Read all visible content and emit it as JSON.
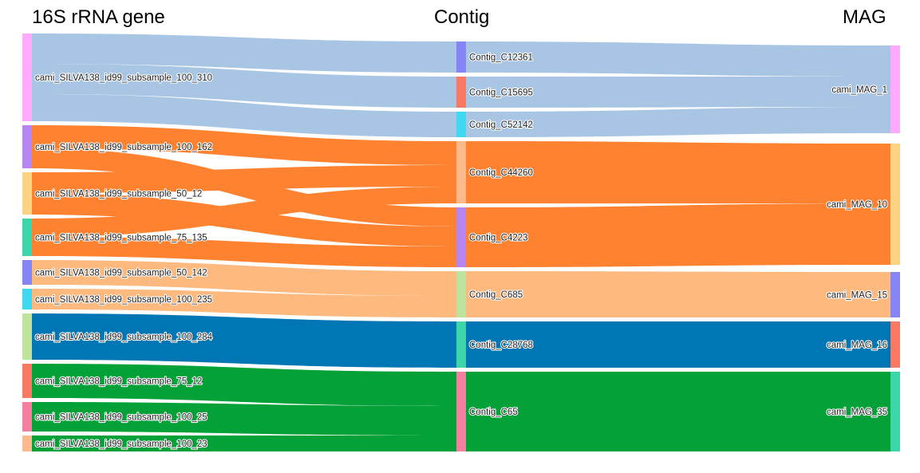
{
  "columns": {
    "left": "16S rRNA gene",
    "middle": "Contig",
    "right": "MAG"
  },
  "nodes": {
    "s310": {
      "label": "cami_SILVA138_id99_subsample_100_310",
      "color": "#ffaaff"
    },
    "s162": {
      "label": "cami_SILVA138_id99_subsample_100_162",
      "color": "#b685f0"
    },
    "s50_12": {
      "label": "cami_SILVA138_id99_subsample_50_12",
      "color": "#fcd283"
    },
    "s75_135": {
      "label": "cami_SILVA138_id99_subsample_75_135",
      "color": "#3cd6a8"
    },
    "s50_142": {
      "label": "cami_SILVA138_id99_subsample_50_142",
      "color": "#8585f5"
    },
    "s235": {
      "label": "cami_SILVA138_id99_subsample_100_235",
      "color": "#3fd8f0"
    },
    "s284": {
      "label": "cami_SILVA138_id99_subsample_100_284",
      "color": "#bde39c"
    },
    "s75_12": {
      "label": "cami_SILVA138_id99_subsample_75_12",
      "color": "#f87964"
    },
    "s25": {
      "label": "cami_SILVA138_id99_subsample_100_25",
      "color": "#f57fa1"
    },
    "s23": {
      "label": "cami_SILVA138_id99_subsample_100_23",
      "color": "#fcb98c"
    },
    "c12361": {
      "label": "Contig_C12361",
      "color": "#8585f5"
    },
    "c15695": {
      "label": "Contig_C15695",
      "color": "#f87964"
    },
    "c52142": {
      "label": "Contig_C52142",
      "color": "#3fd8f0"
    },
    "c44260": {
      "label": "Contig_C44260",
      "color": "#fcb98c"
    },
    "c4223": {
      "label": "Contig_C4223",
      "color": "#b685f0"
    },
    "c685": {
      "label": "Contig_C685",
      "color": "#bde39c"
    },
    "c28768": {
      "label": "Contig_C28768",
      "color": "#3cd6a8"
    },
    "c65": {
      "label": "Contig_C65",
      "color": "#f57fa1"
    },
    "mag1": {
      "label": "cami_MAG_1",
      "color": "#ffaaff"
    },
    "mag10": {
      "label": "cami_MAG_10",
      "color": "#fcd283"
    },
    "mag15": {
      "label": "cami_MAG_15",
      "color": "#8585f5"
    },
    "mag16": {
      "label": "cami_MAG_16",
      "color": "#f87964"
    },
    "mag35": {
      "label": "cami_MAG_35",
      "color": "#3cd6a8"
    }
  },
  "links": [
    {
      "source": "s310",
      "target": "c12361",
      "color": "#a8c6e4"
    },
    {
      "source": "s310",
      "target": "c15695",
      "color": "#a8c6e4"
    },
    {
      "source": "s310",
      "target": "c52142",
      "color": "#a8c6e4"
    },
    {
      "source": "s162",
      "target": "c44260",
      "color": "#ff8230"
    },
    {
      "source": "s162",
      "target": "c4223",
      "color": "#ff8230"
    },
    {
      "source": "s50_12",
      "target": "c44260",
      "color": "#ff8230"
    },
    {
      "source": "s50_12",
      "target": "c4223",
      "color": "#ff8230"
    },
    {
      "source": "s75_135",
      "target": "c44260",
      "color": "#ff8230"
    },
    {
      "source": "s75_135",
      "target": "c4223",
      "color": "#ff8230"
    },
    {
      "source": "s50_142",
      "target": "c685",
      "color": "#feb97f"
    },
    {
      "source": "s235",
      "target": "c685",
      "color": "#feb97f"
    },
    {
      "source": "s284",
      "target": "c28768",
      "color": "#0077b4"
    },
    {
      "source": "s75_12",
      "target": "c65",
      "color": "#03a137"
    },
    {
      "source": "s25",
      "target": "c65",
      "color": "#03a137"
    },
    {
      "source": "s23",
      "target": "c65",
      "color": "#03a137"
    },
    {
      "source": "c12361",
      "target": "mag1",
      "color": "#a8c6e4"
    },
    {
      "source": "c15695",
      "target": "mag1",
      "color": "#a8c6e4"
    },
    {
      "source": "c52142",
      "target": "mag1",
      "color": "#a8c6e4"
    },
    {
      "source": "c44260",
      "target": "mag10",
      "color": "#ff8230"
    },
    {
      "source": "c4223",
      "target": "mag10",
      "color": "#ff8230"
    },
    {
      "source": "c685",
      "target": "mag15",
      "color": "#feb97f"
    },
    {
      "source": "c28768",
      "target": "mag16",
      "color": "#0077b4"
    },
    {
      "source": "c65",
      "target": "mag35",
      "color": "#03a137"
    }
  ]
}
